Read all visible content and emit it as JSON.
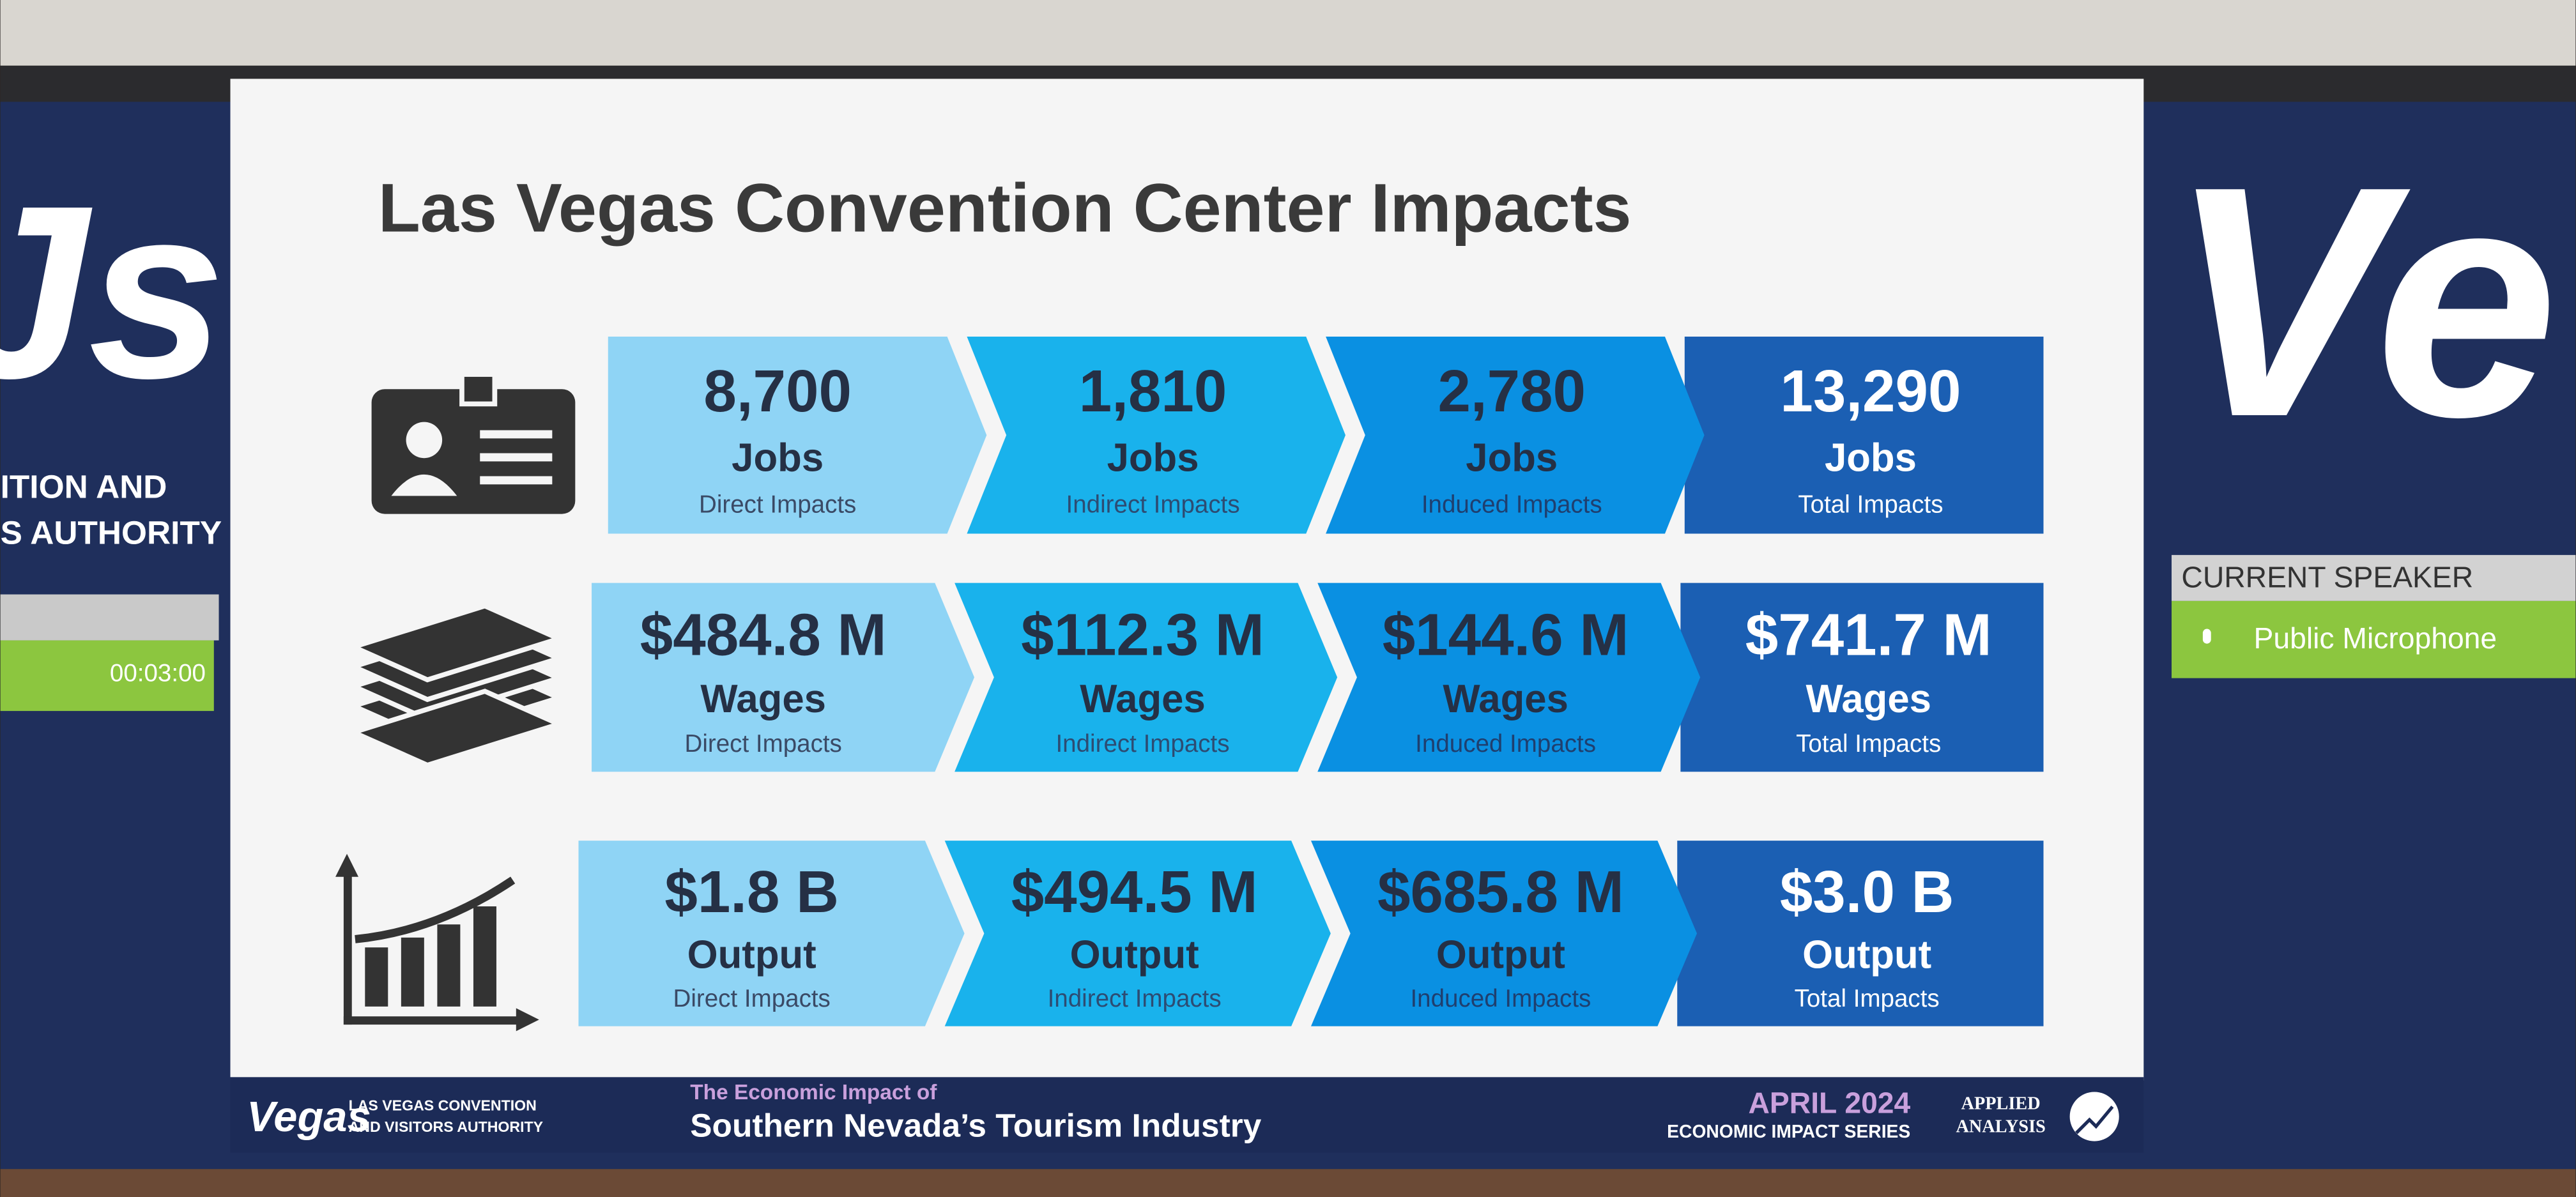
{
  "slide": {
    "title": "Las Vegas Convention Center Impacts",
    "rows": [
      {
        "cells": [
          {
            "value": "8,700",
            "metric": "Jobs",
            "type": "Direct Impacts"
          },
          {
            "value": "1,810",
            "metric": "Jobs",
            "type": "Indirect Impacts"
          },
          {
            "value": "2,780",
            "metric": "Jobs",
            "type": "Induced Impacts"
          },
          {
            "value": "13,290",
            "metric": "Jobs",
            "type": "Total Impacts"
          }
        ]
      },
      {
        "cells": [
          {
            "value": "$484.8 M",
            "metric": "Wages",
            "type": "Direct Impacts"
          },
          {
            "value": "$112.3 M",
            "metric": "Wages",
            "type": "Indirect Impacts"
          },
          {
            "value": "$144.6 M",
            "metric": "Wages",
            "type": "Induced Impacts"
          },
          {
            "value": "$741.7 M",
            "metric": "Wages",
            "type": "Total Impacts"
          }
        ]
      },
      {
        "cells": [
          {
            "value": "$1.8 B",
            "metric": "Output",
            "type": "Direct Impacts"
          },
          {
            "value": "$494.5 M",
            "metric": "Output",
            "type": "Indirect Impacts"
          },
          {
            "value": "$685.8 M",
            "metric": "Output",
            "type": "Induced Impacts"
          },
          {
            "value": "$3.0 B",
            "metric": "Output",
            "type": "Total Impacts"
          }
        ]
      }
    ]
  },
  "footer": {
    "logo": "Vegas",
    "org_line1": "LAS VEGAS CONVENTION",
    "org_line2": "AND VISITORS AUTHORITY",
    "subtitle": "The Economic Impact of",
    "title": "Southern Nevada’s Tourism Industry",
    "date": "APRIL 2024",
    "series": "ECONOMIC IMPACT SERIES",
    "firm_line1": "APPLIED",
    "firm_line2": "ANALYSIS"
  },
  "left_panel": {
    "line1": "ITION AND",
    "line2": "S AUTHORITY",
    "timer": "00:03:00"
  },
  "right_panel": {
    "logo": "Ve",
    "heading": "CURRENT SPEAKER",
    "speaker": "Public Microphone"
  }
}
